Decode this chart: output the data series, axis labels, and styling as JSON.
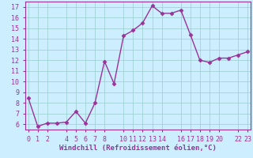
{
  "x": [
    0,
    1,
    2,
    3,
    4,
    5,
    6,
    7,
    8,
    9,
    10,
    11,
    12,
    13,
    14,
    15,
    16,
    17,
    18,
    19,
    20,
    21,
    22,
    23
  ],
  "y": [
    8.5,
    5.8,
    6.1,
    6.1,
    6.2,
    7.2,
    6.1,
    8.0,
    11.9,
    9.8,
    14.3,
    14.8,
    15.5,
    17.1,
    16.4,
    16.4,
    16.7,
    14.4,
    12.0,
    11.8,
    12.2,
    12.2,
    12.5,
    12.8
  ],
  "line_color": "#993399",
  "marker": "D",
  "markersize": 2.5,
  "linewidth": 1.0,
  "bg_color": "#cceeff",
  "grid_color": "#99cccc",
  "xlabel": "Windchill (Refroidissement éolien,°C)",
  "xlabel_fontsize": 6.5,
  "xlabel_color": "#993399",
  "tick_color": "#993399",
  "tick_fontsize": 6.0,
  "ylim": [
    5.5,
    17.5
  ],
  "yticks": [
    6,
    7,
    8,
    9,
    10,
    11,
    12,
    13,
    14,
    15,
    16,
    17
  ],
  "xticks": [
    0,
    1,
    2,
    4,
    5,
    6,
    7,
    8,
    10,
    11,
    12,
    13,
    14,
    16,
    17,
    18,
    19,
    20,
    22,
    23
  ],
  "xtick_labels": [
    "0",
    "1",
    "2",
    "4",
    "5",
    "6",
    "7",
    "8",
    "10",
    "11",
    "12",
    "13",
    "14",
    "16",
    "17",
    "18",
    "19",
    "20",
    "22",
    "23"
  ],
  "xlim": [
    -0.3,
    23.3
  ]
}
